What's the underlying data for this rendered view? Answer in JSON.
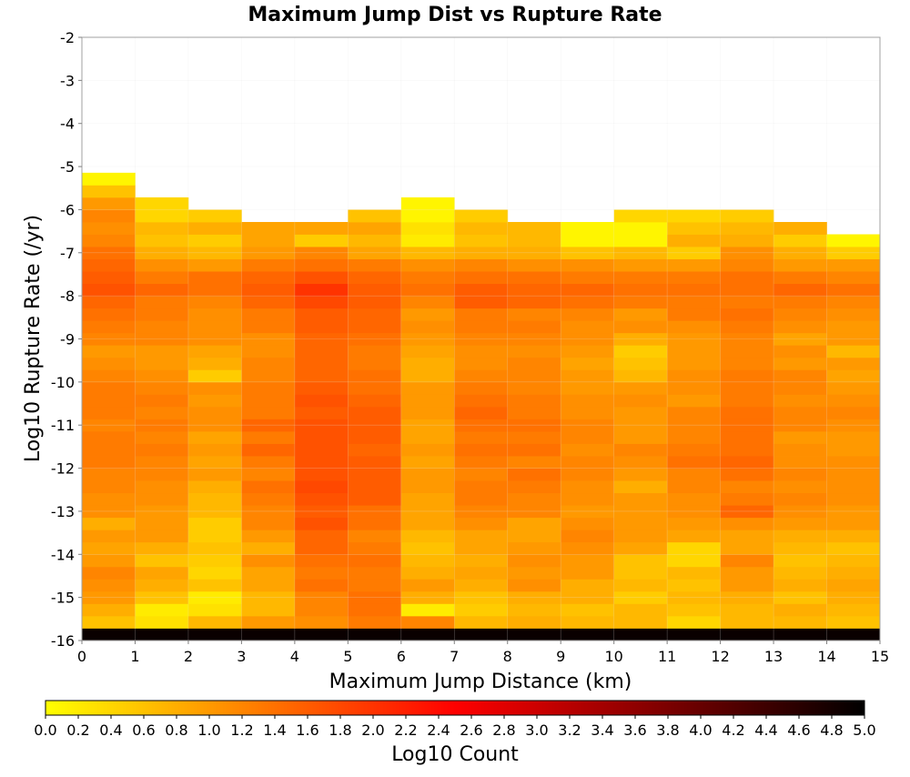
{
  "chart_data": {
    "type": "heatmap",
    "title": "Maximum Jump Dist vs Rupture Rate",
    "xlabel": "Maximum Jump Distance (km)",
    "ylabel": "Log10 Rupture Rate (/yr)",
    "xlim": [
      0,
      15
    ],
    "ylim": [
      -16,
      -2
    ],
    "x_ticks": [
      "0",
      "1",
      "2",
      "3",
      "4",
      "5",
      "6",
      "7",
      "8",
      "9",
      "10",
      "11",
      "12",
      "13",
      "14",
      "15"
    ],
    "y_ticks": [
      "-2",
      "-3",
      "-4",
      "-5",
      "-6",
      "-7",
      "-8",
      "-9",
      "-10",
      "-11",
      "-12",
      "-13",
      "-14",
      "-15",
      "-16"
    ],
    "x_bin_width": 1,
    "y_bin_width": 0.2857,
    "y_bin_origin": -16,
    "grid": true,
    "missing_value_color": "#ffffff",
    "colorbar": {
      "label": "Log10 Count",
      "range": [
        0,
        5
      ],
      "ticks": [
        "0.0",
        "0.2",
        "0.4",
        "0.6",
        "0.8",
        "1.0",
        "1.2",
        "1.4",
        "1.6",
        "1.8",
        "2.0",
        "2.2",
        "2.4",
        "2.6",
        "2.8",
        "3.0",
        "3.2",
        "3.4",
        "3.6",
        "3.8",
        "4.0",
        "4.2",
        "4.4",
        "4.6",
        "4.8",
        "5.0"
      ],
      "colormap": [
        "#ffff00",
        "#ff8000",
        "#ff0000",
        "#800000",
        "#000000"
      ]
    },
    "values": [
      [
        4.9,
        4.9,
        4.9,
        4.9,
        4.9,
        4.9,
        4.9,
        4.9,
        4.9,
        4.9,
        4.9,
        4.9,
        4.9,
        4.9,
        4.9
      ],
      [
        0.6,
        0.3,
        0.7,
        1.0,
        1.1,
        1.3,
        1.2,
        0.7,
        0.8,
        0.7,
        0.7,
        0.4,
        0.7,
        0.7,
        0.6
      ],
      [
        0.8,
        0.2,
        0.3,
        0.7,
        1.2,
        1.4,
        0.2,
        0.5,
        0.7,
        0.6,
        0.7,
        0.6,
        0.7,
        0.8,
        0.7
      ],
      [
        1.0,
        0.6,
        0.2,
        0.7,
        1.2,
        1.4,
        0.8,
        0.6,
        0.8,
        0.8,
        0.5,
        0.7,
        0.8,
        0.6,
        0.8
      ],
      [
        1.1,
        0.8,
        0.6,
        0.9,
        1.4,
        1.3,
        1.0,
        0.8,
        1.1,
        0.8,
        0.7,
        0.6,
        1.0,
        0.8,
        0.9
      ],
      [
        1.2,
        0.9,
        0.4,
        0.9,
        1.3,
        1.3,
        0.8,
        0.9,
        1.0,
        1.0,
        0.6,
        0.7,
        1.0,
        0.7,
        0.8
      ],
      [
        1.0,
        0.6,
        0.5,
        1.1,
        1.4,
        1.4,
        0.7,
        0.8,
        1.1,
        1.0,
        0.6,
        0.4,
        1.2,
        0.6,
        0.7
      ],
      [
        0.9,
        0.8,
        0.6,
        0.8,
        1.5,
        1.3,
        0.6,
        0.9,
        1.0,
        1.1,
        0.9,
        0.4,
        0.9,
        0.7,
        0.6
      ],
      [
        1.0,
        1.0,
        0.5,
        1.0,
        1.5,
        1.2,
        0.7,
        0.9,
        0.9,
        1.2,
        1.0,
        0.9,
        0.9,
        0.8,
        0.8
      ],
      [
        0.8,
        1.0,
        0.5,
        1.2,
        1.7,
        1.4,
        0.9,
        1.1,
        0.9,
        1.1,
        1.0,
        1.0,
        1.1,
        1.0,
        1.0
      ],
      [
        1.1,
        1.0,
        0.7,
        1.2,
        1.6,
        1.4,
        0.9,
        1.2,
        1.2,
        1.0,
        1.0,
        1.1,
        1.5,
        1.1,
        1.0
      ],
      [
        1.1,
        1.1,
        0.7,
        1.3,
        1.7,
        1.6,
        0.9,
        1.3,
        1.2,
        1.1,
        1.0,
        1.1,
        1.3,
        1.2,
        1.1
      ],
      [
        1.2,
        1.1,
        0.8,
        1.4,
        1.8,
        1.6,
        1.0,
        1.3,
        1.3,
        1.1,
        0.8,
        1.2,
        1.2,
        1.1,
        1.1
      ],
      [
        1.2,
        1.2,
        1.0,
        1.2,
        1.7,
        1.6,
        1.0,
        1.2,
        1.4,
        1.2,
        1.0,
        1.2,
        1.4,
        1.2,
        1.1
      ],
      [
        1.3,
        1.2,
        0.9,
        1.3,
        1.7,
        1.6,
        0.9,
        1.3,
        1.2,
        1.2,
        1.1,
        1.4,
        1.5,
        1.1,
        1.1
      ],
      [
        1.3,
        1.3,
        1.0,
        1.5,
        1.7,
        1.5,
        1.0,
        1.4,
        1.4,
        1.1,
        1.2,
        1.3,
        1.4,
        1.1,
        1.0
      ],
      [
        1.3,
        1.2,
        0.9,
        1.3,
        1.7,
        1.6,
        0.9,
        1.3,
        1.3,
        1.2,
        1.0,
        1.2,
        1.4,
        1.0,
        1.0
      ],
      [
        1.2,
        1.3,
        1.1,
        1.5,
        1.7,
        1.6,
        0.9,
        1.4,
        1.4,
        1.2,
        1.0,
        1.2,
        1.4,
        1.2,
        1.1
      ],
      [
        1.3,
        1.2,
        1.1,
        1.3,
        1.6,
        1.6,
        1.0,
        1.5,
        1.3,
        1.1,
        1.0,
        1.2,
        1.4,
        1.2,
        1.2
      ],
      [
        1.3,
        1.3,
        1.0,
        1.3,
        1.7,
        1.5,
        1.0,
        1.4,
        1.3,
        1.1,
        1.1,
        1.0,
        1.3,
        1.1,
        1.1
      ],
      [
        1.3,
        1.2,
        1.1,
        1.3,
        1.6,
        1.4,
        1.0,
        1.3,
        1.2,
        1.0,
        1.0,
        1.1,
        1.3,
        1.2,
        1.0
      ],
      [
        1.2,
        1.1,
        0.5,
        1.2,
        1.5,
        1.4,
        0.8,
        1.2,
        1.2,
        1.0,
        0.7,
        1.1,
        1.3,
        1.2,
        0.9
      ],
      [
        1.1,
        1.0,
        0.8,
        1.2,
        1.5,
        1.3,
        0.8,
        1.1,
        1.2,
        0.9,
        0.6,
        1.0,
        1.2,
        1.0,
        1.0
      ],
      [
        1.0,
        1.0,
        0.9,
        1.1,
        1.5,
        1.3,
        0.9,
        1.1,
        1.1,
        1.0,
        0.5,
        1.0,
        1.2,
        1.1,
        0.7
      ],
      [
        1.2,
        1.2,
        1.1,
        1.1,
        1.5,
        1.4,
        1.0,
        1.2,
        1.2,
        1.1,
        0.8,
        1.0,
        1.2,
        0.9,
        1.0
      ],
      [
        1.3,
        1.2,
        1.1,
        1.3,
        1.6,
        1.5,
        1.1,
        1.3,
        1.3,
        1.1,
        1.1,
        1.1,
        1.3,
        1.1,
        1.0
      ],
      [
        1.4,
        1.3,
        1.1,
        1.3,
        1.6,
        1.5,
        1.0,
        1.3,
        1.2,
        1.2,
        1.0,
        1.3,
        1.4,
        1.2,
        1.1
      ],
      [
        1.5,
        1.3,
        1.2,
        1.5,
        1.8,
        1.6,
        1.2,
        1.6,
        1.5,
        1.4,
        1.3,
        1.3,
        1.3,
        1.3,
        1.2
      ],
      [
        1.7,
        1.5,
        1.4,
        1.6,
        2.0,
        1.6,
        1.4,
        1.6,
        1.5,
        1.5,
        1.4,
        1.4,
        1.4,
        1.5,
        1.4
      ],
      [
        1.6,
        1.3,
        1.4,
        1.5,
        1.7,
        1.5,
        1.3,
        1.4,
        1.4,
        1.3,
        1.3,
        1.3,
        1.4,
        1.3,
        1.2
      ],
      [
        1.5,
        1.1,
        1.0,
        1.3,
        1.4,
        1.3,
        1.1,
        1.2,
        1.1,
        1.1,
        1.0,
        1.0,
        1.2,
        1.0,
        1.0
      ],
      [
        1.4,
        0.8,
        0.7,
        1.0,
        1.2,
        0.9,
        0.7,
        0.8,
        0.8,
        0.6,
        0.7,
        0.5,
        1.1,
        0.8,
        0.5
      ],
      [
        1.2,
        0.6,
        0.5,
        0.9,
        0.5,
        0.7,
        0.2,
        0.6,
        0.7,
        0.1,
        0.1,
        0.8,
        0.8,
        0.5,
        0.1
      ],
      [
        1.1,
        0.7,
        0.8,
        0.9,
        0.9,
        0.9,
        0.3,
        0.7,
        0.7,
        0.1,
        0.1,
        0.6,
        0.7,
        0.8,
        null
      ],
      [
        1.2,
        0.4,
        0.5,
        null,
        null,
        0.6,
        0.1,
        0.5,
        null,
        null,
        0.4,
        0.4,
        0.5,
        null,
        null
      ],
      [
        1.0,
        0.4,
        null,
        null,
        null,
        null,
        0.1,
        null,
        null,
        null,
        null,
        null,
        null,
        null,
        null
      ],
      [
        0.6,
        null,
        null,
        null,
        null,
        null,
        null,
        null,
        null,
        null,
        null,
        null,
        null,
        null,
        null
      ],
      [
        0.1,
        null,
        null,
        null,
        null,
        null,
        null,
        null,
        null,
        null,
        null,
        null,
        null,
        null,
        null
      ],
      [
        null,
        null,
        null,
        null,
        null,
        null,
        null,
        null,
        null,
        null,
        null,
        null,
        null,
        null,
        null
      ],
      [
        null,
        null,
        null,
        null,
        null,
        null,
        null,
        null,
        null,
        null,
        null,
        null,
        null,
        null,
        null
      ],
      [
        null,
        null,
        null,
        null,
        null,
        null,
        null,
        null,
        null,
        null,
        null,
        null,
        null,
        null,
        null
      ],
      [
        null,
        null,
        null,
        null,
        null,
        null,
        null,
        null,
        null,
        null,
        null,
        null,
        null,
        null,
        null
      ],
      [
        null,
        null,
        null,
        null,
        null,
        null,
        null,
        null,
        null,
        null,
        null,
        null,
        null,
        null,
        null
      ],
      [
        null,
        null,
        null,
        null,
        null,
        null,
        null,
        null,
        null,
        null,
        null,
        null,
        null,
        null,
        null
      ],
      [
        null,
        null,
        null,
        null,
        null,
        null,
        null,
        null,
        null,
        null,
        null,
        null,
        null,
        null,
        null
      ],
      [
        null,
        null,
        null,
        null,
        null,
        null,
        null,
        null,
        null,
        null,
        null,
        null,
        null,
        null,
        null
      ],
      [
        null,
        null,
        null,
        null,
        null,
        null,
        null,
        null,
        null,
        null,
        null,
        null,
        null,
        null,
        null
      ],
      [
        null,
        null,
        null,
        null,
        null,
        null,
        null,
        null,
        null,
        null,
        null,
        null,
        null,
        null,
        null
      ],
      [
        null,
        null,
        null,
        null,
        null,
        null,
        null,
        null,
        null,
        null,
        null,
        null,
        null,
        null,
        null
      ]
    ]
  }
}
